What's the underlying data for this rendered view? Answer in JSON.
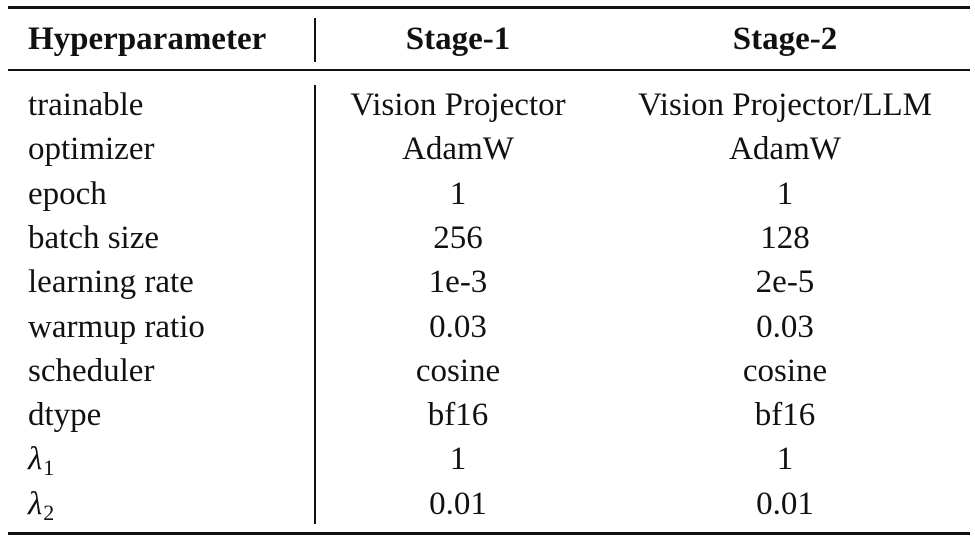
{
  "table": {
    "headers": [
      "Hyperparameter",
      "Stage-1",
      "Stage-2"
    ],
    "rows": [
      {
        "name": "trainable",
        "stage1": "Vision Projector",
        "stage2": "Vision Projector/LLM"
      },
      {
        "name": "optimizer",
        "stage1": "AdamW",
        "stage2": "AdamW"
      },
      {
        "name": "epoch",
        "stage1": "1",
        "stage2": "1"
      },
      {
        "name": "batch size",
        "stage1": "256",
        "stage2": "128"
      },
      {
        "name": "learning rate",
        "stage1": "1e-3",
        "stage2": "2e-5"
      },
      {
        "name": "warmup ratio",
        "stage1": "0.03",
        "stage2": "0.03"
      },
      {
        "name": "scheduler",
        "stage1": "cosine",
        "stage2": "cosine"
      },
      {
        "name": "dtype",
        "stage1": "bf16",
        "stage2": "bf16"
      },
      {
        "name": "λ",
        "sub": "1",
        "stage1": "1",
        "stage2": "1"
      },
      {
        "name": "λ",
        "sub": "2",
        "stage1": "0.01",
        "stage2": "0.01"
      }
    ]
  }
}
